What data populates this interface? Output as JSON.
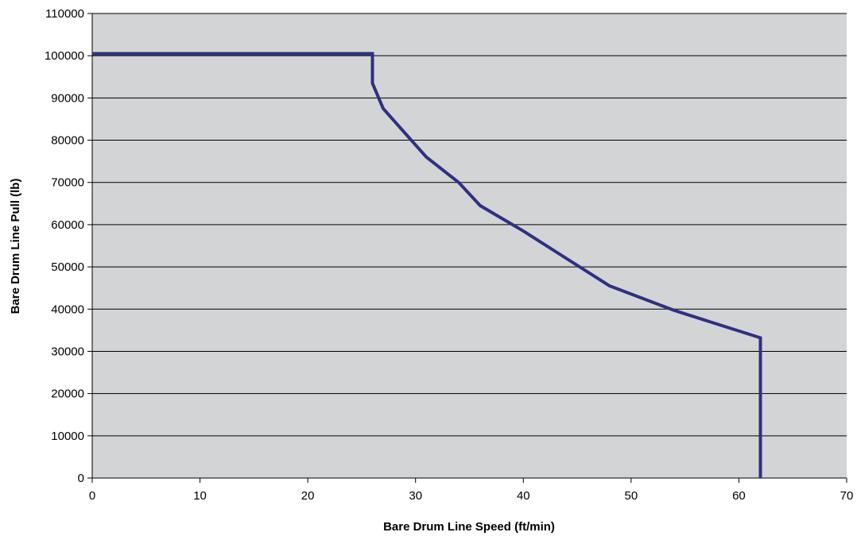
{
  "chart_data": {
    "type": "line",
    "title": "",
    "xlabel": "Bare Drum Line Speed (ft/min)",
    "ylabel": "Bare Drum Line Pull (lb)",
    "xlim": [
      0,
      70
    ],
    "ylim": [
      0,
      110000
    ],
    "x_ticks": [
      "0",
      "10",
      "20",
      "30",
      "40",
      "50",
      "60",
      "70"
    ],
    "y_ticks": [
      "0",
      "10000",
      "20000",
      "30000",
      "40000",
      "50000",
      "60000",
      "70000",
      "80000",
      "90000",
      "100000",
      "110000"
    ],
    "grid": "horizontal",
    "legend": "none",
    "series": [
      {
        "color": "#2e3180",
        "x": [
          0,
          26,
          26,
          27,
          31,
          34,
          36,
          40,
          44,
          48,
          54,
          62,
          62
        ],
        "y": [
          100500,
          100500,
          93500,
          87500,
          76000,
          70000,
          64500,
          58500,
          52000,
          45500,
          39700,
          33200,
          0
        ]
      }
    ]
  },
  "colors": {
    "plot_background": "#d3d4d6",
    "gridline": "#000000",
    "series_line": "#2e3180"
  }
}
